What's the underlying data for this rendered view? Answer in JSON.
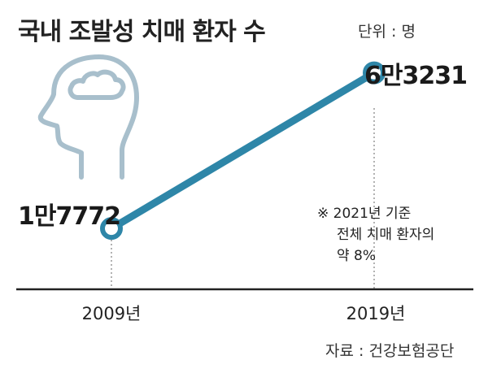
{
  "chart_data": {
    "type": "line",
    "title": "국내 조발성 치매 환자 수",
    "unit": "단위 : 명",
    "categories": [
      "2009년",
      "2019년"
    ],
    "x": [
      2009,
      2019
    ],
    "series": [
      {
        "values": [
          17772,
          63231
        ],
        "labels": [
          "1만7772",
          "6만3231"
        ]
      }
    ],
    "annotation": [
      "※ 2021년 기준",
      "전체 치매 환자의",
      "약 8%"
    ],
    "source": "자료 : 건강보험공단",
    "ylim": [
      0,
      75000
    ],
    "grid": false,
    "line_color": "#2e86a8",
    "icon": "head-cloud-icon"
  }
}
